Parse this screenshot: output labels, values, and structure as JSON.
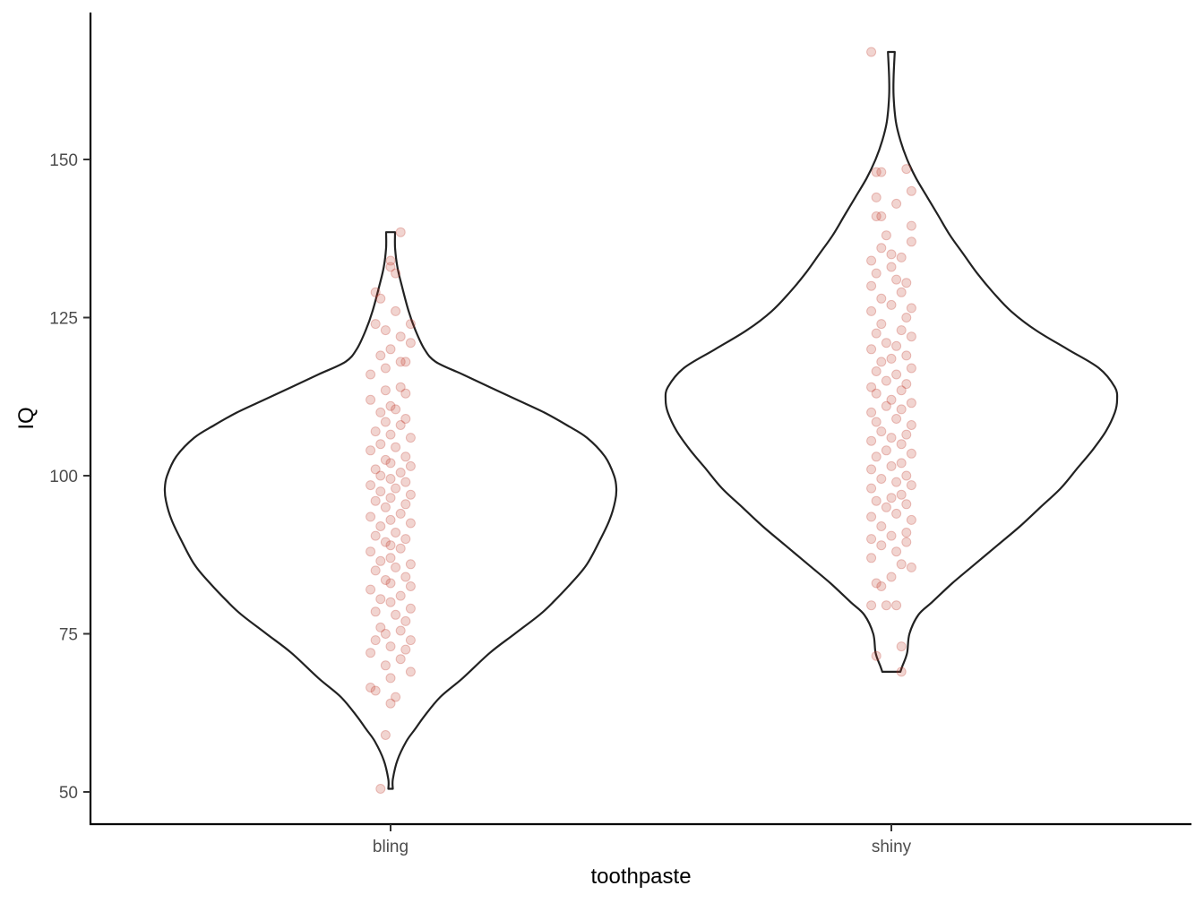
{
  "chart_data": {
    "type": "violin",
    "xlabel": "toothpaste",
    "ylabel": "IQ",
    "categories": [
      "bling",
      "shiny"
    ],
    "y_ticks": [
      50,
      75,
      100,
      125,
      150
    ],
    "y_tick_labels": [
      "50",
      "75",
      "100",
      "125",
      "150"
    ],
    "ylim": [
      45,
      168
    ],
    "grid": false,
    "legend": "none",
    "point_color": "#c0392b",
    "outline_color": "#222222",
    "violins": [
      {
        "category": "bling",
        "min": 50.5,
        "max": 138.5,
        "density": [
          [
            50.5,
            0.01
          ],
          [
            52,
            0.01
          ],
          [
            55,
            0.03
          ],
          [
            58,
            0.07
          ],
          [
            60,
            0.11
          ],
          [
            62,
            0.15
          ],
          [
            65,
            0.22
          ],
          [
            68,
            0.32
          ],
          [
            72,
            0.44
          ],
          [
            75,
            0.55
          ],
          [
            78,
            0.66
          ],
          [
            80,
            0.72
          ],
          [
            83,
            0.8
          ],
          [
            86,
            0.87
          ],
          [
            90,
            0.93
          ],
          [
            93,
            0.97
          ],
          [
            96,
            0.995
          ],
          [
            98,
            1.0
          ],
          [
            100,
            0.99
          ],
          [
            103,
            0.95
          ],
          [
            106,
            0.87
          ],
          [
            108,
            0.78
          ],
          [
            110,
            0.68
          ],
          [
            112,
            0.56
          ],
          [
            114,
            0.44
          ],
          [
            116,
            0.32
          ],
          [
            118,
            0.2
          ],
          [
            120,
            0.15
          ],
          [
            123,
            0.11
          ],
          [
            126,
            0.08
          ],
          [
            130,
            0.05
          ],
          [
            133,
            0.03
          ],
          [
            136,
            0.02
          ],
          [
            138.5,
            0.02
          ]
        ],
        "points": [
          [
            50.5,
            -0.02
          ],
          [
            59,
            -0.01
          ],
          [
            64,
            0.0
          ],
          [
            65,
            0.01
          ],
          [
            66,
            -0.03
          ],
          [
            66.5,
            -0.04
          ],
          [
            68,
            0.0
          ],
          [
            69,
            0.04
          ],
          [
            70,
            -0.01
          ],
          [
            71,
            0.02
          ],
          [
            72,
            -0.04
          ],
          [
            72.5,
            0.03
          ],
          [
            73,
            0.0
          ],
          [
            74,
            -0.03
          ],
          [
            74,
            0.04
          ],
          [
            75,
            -0.01
          ],
          [
            75.5,
            0.02
          ],
          [
            76,
            -0.02
          ],
          [
            77,
            0.03
          ],
          [
            78,
            0.01
          ],
          [
            78.5,
            -0.03
          ],
          [
            79,
            0.04
          ],
          [
            80,
            0.0
          ],
          [
            80.5,
            -0.02
          ],
          [
            81,
            0.02
          ],
          [
            82,
            -0.04
          ],
          [
            82.5,
            0.04
          ],
          [
            83,
            0.0
          ],
          [
            83.5,
            -0.01
          ],
          [
            84,
            0.03
          ],
          [
            85,
            -0.03
          ],
          [
            85.5,
            0.01
          ],
          [
            86,
            0.04
          ],
          [
            86.5,
            -0.02
          ],
          [
            87,
            0.0
          ],
          [
            88,
            -0.04
          ],
          [
            88.5,
            0.02
          ],
          [
            89,
            0.0
          ],
          [
            89.5,
            -0.01
          ],
          [
            90,
            0.03
          ],
          [
            90.5,
            -0.03
          ],
          [
            91,
            0.01
          ],
          [
            92,
            -0.02
          ],
          [
            92.5,
            0.04
          ],
          [
            93,
            0.0
          ],
          [
            93.5,
            -0.04
          ],
          [
            94,
            0.02
          ],
          [
            95,
            -0.01
          ],
          [
            95.5,
            0.03
          ],
          [
            96,
            -0.03
          ],
          [
            96.5,
            0.0
          ],
          [
            97,
            0.04
          ],
          [
            97.5,
            -0.02
          ],
          [
            98,
            0.01
          ],
          [
            98.5,
            -0.04
          ],
          [
            99,
            0.03
          ],
          [
            99.5,
            0.0
          ],
          [
            100,
            -0.02
          ],
          [
            100.5,
            0.02
          ],
          [
            101,
            -0.03
          ],
          [
            101.5,
            0.04
          ],
          [
            102,
            0.0
          ],
          [
            102.5,
            -0.01
          ],
          [
            103,
            0.03
          ],
          [
            104,
            -0.04
          ],
          [
            104.5,
            0.01
          ],
          [
            105,
            -0.02
          ],
          [
            106,
            0.04
          ],
          [
            106.5,
            0.0
          ],
          [
            107,
            -0.03
          ],
          [
            108,
            0.02
          ],
          [
            108.5,
            -0.01
          ],
          [
            109,
            0.03
          ],
          [
            110,
            -0.02
          ],
          [
            110.5,
            0.01
          ],
          [
            111,
            0.0
          ],
          [
            112,
            -0.04
          ],
          [
            113,
            0.03
          ],
          [
            113.5,
            -0.01
          ],
          [
            114,
            0.02
          ],
          [
            116,
            -0.04
          ],
          [
            117,
            -0.01
          ],
          [
            118,
            0.02
          ],
          [
            118,
            0.03
          ],
          [
            119,
            -0.02
          ],
          [
            120,
            0.0
          ],
          [
            121,
            0.04
          ],
          [
            122,
            0.02
          ],
          [
            123,
            -0.01
          ],
          [
            124,
            0.04
          ],
          [
            124,
            -0.03
          ],
          [
            126,
            0.01
          ],
          [
            128,
            -0.02
          ],
          [
            129,
            -0.03
          ],
          [
            132,
            0.01
          ],
          [
            133,
            0.0
          ],
          [
            134,
            0.0
          ],
          [
            138.5,
            0.02
          ]
        ]
      },
      {
        "category": "shiny",
        "min": 69,
        "max": 167,
        "density": [
          [
            69,
            0.04
          ],
          [
            70,
            0.05
          ],
          [
            72,
            0.07
          ],
          [
            75,
            0.08
          ],
          [
            78,
            0.12
          ],
          [
            80,
            0.18
          ],
          [
            83,
            0.27
          ],
          [
            86,
            0.37
          ],
          [
            89,
            0.47
          ],
          [
            92,
            0.57
          ],
          [
            95,
            0.66
          ],
          [
            98,
            0.75
          ],
          [
            101,
            0.82
          ],
          [
            104,
            0.89
          ],
          [
            107,
            0.95
          ],
          [
            110,
            0.99
          ],
          [
            112,
            1.0
          ],
          [
            114,
            0.99
          ],
          [
            117,
            0.92
          ],
          [
            120,
            0.78
          ],
          [
            123,
            0.64
          ],
          [
            126,
            0.53
          ],
          [
            129,
            0.45
          ],
          [
            132,
            0.38
          ],
          [
            135,
            0.32
          ],
          [
            138,
            0.26
          ],
          [
            141,
            0.21
          ],
          [
            144,
            0.16
          ],
          [
            147,
            0.11
          ],
          [
            150,
            0.07
          ],
          [
            153,
            0.04
          ],
          [
            156,
            0.02
          ],
          [
            160,
            0.01
          ],
          [
            163,
            0.01
          ],
          [
            167,
            0.015
          ]
        ],
        "points": [
          [
            69,
            0.02
          ],
          [
            71.5,
            -0.03
          ],
          [
            73,
            0.02
          ],
          [
            79.5,
            -0.04
          ],
          [
            79.5,
            -0.01
          ],
          [
            79.5,
            0.01
          ],
          [
            82.5,
            -0.02
          ],
          [
            83,
            -0.03
          ],
          [
            84,
            0.0
          ],
          [
            85.5,
            0.04
          ],
          [
            86,
            0.02
          ],
          [
            87,
            -0.04
          ],
          [
            88,
            0.01
          ],
          [
            89,
            -0.02
          ],
          [
            89.5,
            0.03
          ],
          [
            90,
            -0.04
          ],
          [
            90.5,
            0.0
          ],
          [
            91,
            0.03
          ],
          [
            92,
            -0.02
          ],
          [
            93,
            0.04
          ],
          [
            93.5,
            -0.04
          ],
          [
            94,
            0.01
          ],
          [
            95,
            -0.01
          ],
          [
            95.5,
            0.03
          ],
          [
            96,
            -0.03
          ],
          [
            96.5,
            0.0
          ],
          [
            97,
            0.02
          ],
          [
            98,
            -0.04
          ],
          [
            98.5,
            0.04
          ],
          [
            99,
            0.01
          ],
          [
            99.5,
            -0.02
          ],
          [
            100,
            0.03
          ],
          [
            101,
            -0.04
          ],
          [
            101.5,
            0.0
          ],
          [
            102,
            0.02
          ],
          [
            103,
            -0.03
          ],
          [
            103.5,
            0.04
          ],
          [
            104,
            -0.01
          ],
          [
            105,
            0.02
          ],
          [
            105.5,
            -0.04
          ],
          [
            106,
            0.0
          ],
          [
            106.5,
            0.03
          ],
          [
            107,
            -0.02
          ],
          [
            108,
            0.04
          ],
          [
            108.5,
            -0.03
          ],
          [
            109,
            0.01
          ],
          [
            110,
            -0.04
          ],
          [
            110.5,
            0.02
          ],
          [
            111,
            -0.01
          ],
          [
            111.5,
            0.04
          ],
          [
            112,
            0.0
          ],
          [
            113,
            -0.03
          ],
          [
            113.5,
            0.02
          ],
          [
            114,
            -0.04
          ],
          [
            114.5,
            0.03
          ],
          [
            115,
            -0.01
          ],
          [
            116,
            0.01
          ],
          [
            116.5,
            -0.03
          ],
          [
            117,
            0.04
          ],
          [
            118,
            -0.02
          ],
          [
            118.5,
            0.0
          ],
          [
            119,
            0.03
          ],
          [
            120,
            -0.04
          ],
          [
            120.5,
            0.01
          ],
          [
            121,
            -0.01
          ],
          [
            122,
            0.04
          ],
          [
            122.5,
            -0.03
          ],
          [
            123,
            0.02
          ],
          [
            124,
            -0.02
          ],
          [
            125,
            0.03
          ],
          [
            126,
            -0.04
          ],
          [
            126.5,
            0.04
          ],
          [
            127,
            0.0
          ],
          [
            128,
            -0.02
          ],
          [
            129,
            0.02
          ],
          [
            130,
            -0.04
          ],
          [
            130.5,
            0.03
          ],
          [
            131,
            0.01
          ],
          [
            132,
            -0.03
          ],
          [
            133,
            0.0
          ],
          [
            134,
            -0.04
          ],
          [
            134.5,
            0.02
          ],
          [
            135,
            0.0
          ],
          [
            136,
            -0.02
          ],
          [
            137,
            0.04
          ],
          [
            138,
            -0.01
          ],
          [
            139.5,
            0.04
          ],
          [
            141,
            -0.02
          ],
          [
            141,
            -0.03
          ],
          [
            143,
            0.01
          ],
          [
            144,
            -0.03
          ],
          [
            145,
            0.04
          ],
          [
            148,
            -0.02
          ],
          [
            148,
            -0.03
          ],
          [
            148.5,
            0.03
          ],
          [
            167,
            -0.04
          ]
        ]
      }
    ]
  }
}
